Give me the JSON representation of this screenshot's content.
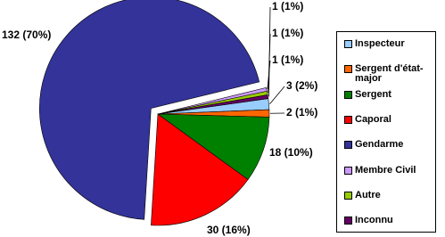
{
  "chart_data": {
    "type": "pie",
    "categories": [
      "Inspecteur",
      "Sergent d'état-major",
      "Sergent",
      "Caporal",
      "Gendarme",
      "Membre Civil",
      "Autre",
      "Inconnu"
    ],
    "values": [
      3,
      2,
      18,
      30,
      132,
      1,
      1,
      1
    ],
    "value_labels": [
      "3 (2%)",
      "2 (1%)",
      "18 (10%)",
      "30 (16%)",
      "132 (70%)",
      "1 (1%)",
      "1 (1%)",
      "1 (1%)"
    ],
    "colors": [
      "#99ccff",
      "#ff6600",
      "#008000",
      "#ff0000",
      "#333399",
      "#cc99ff",
      "#99cc00",
      "#660066"
    ],
    "legend": "right"
  }
}
